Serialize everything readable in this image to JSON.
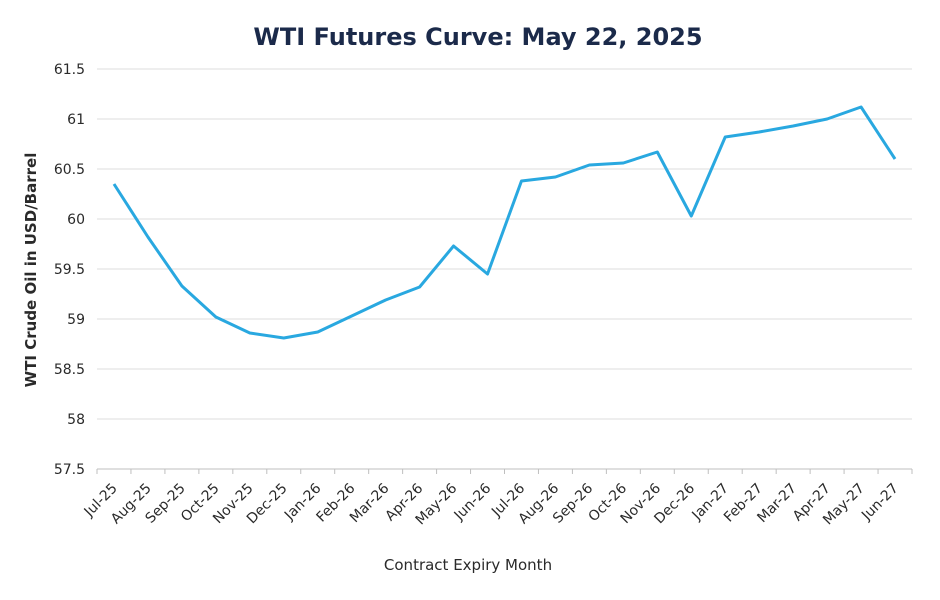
{
  "chart_data": {
    "type": "line",
    "title": "WTI Futures Curve: May 22, 2025",
    "x_label": "Contract Expiry Month",
    "y_label": "WTI Crude Oil in USD/Barrel",
    "categories": [
      "Jul-25",
      "Aug-25",
      "Sep-25",
      "Oct-25",
      "Nov-25",
      "Dec-25",
      "Jan-26",
      "Feb-26",
      "Mar-26",
      "Apr-26",
      "May-26",
      "Jun-26",
      "Jul-26",
      "Aug-26",
      "Sep-26",
      "Oct-26",
      "Nov-26",
      "Dec-26",
      "Jan-27",
      "Feb-27",
      "Mar-27",
      "Apr-27",
      "May-27",
      "Jun-27"
    ],
    "values": [
      60.35,
      59.82,
      59.33,
      59.02,
      58.86,
      58.81,
      58.87,
      59.03,
      59.19,
      59.32,
      59.73,
      59.45,
      60.38,
      60.42,
      60.54,
      60.56,
      60.67,
      60.03,
      60.82,
      60.87,
      60.93,
      61.0,
      61.12,
      60.6
    ],
    "color": "#29a8e0",
    "ylim": [
      57.5,
      61.5
    ],
    "yticks": [
      57.5,
      58,
      58.5,
      59,
      59.5,
      60,
      60.5,
      61,
      61.5
    ],
    "grid": true
  }
}
